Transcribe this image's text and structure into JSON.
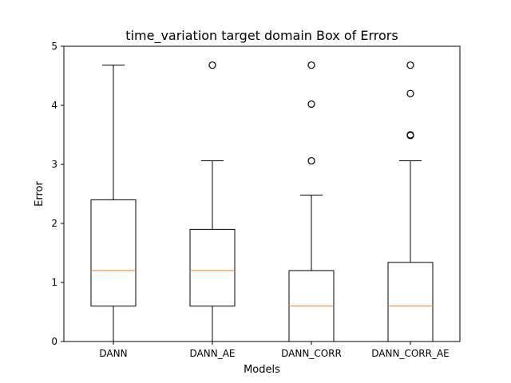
{
  "chart_data": {
    "type": "box",
    "title": "time_variation target domain Box of Errors",
    "xlabel": "Models",
    "ylabel": "Error",
    "ylim": [
      0,
      5
    ],
    "yticks": [
      0,
      1,
      2,
      3,
      4,
      5
    ],
    "grid": false,
    "categories": [
      "DANN",
      "DANN_AE",
      "DANN_CORR",
      "DANN_CORR_AE"
    ],
    "boxes": [
      {
        "whisker_low": 0,
        "q1": 0.6,
        "median": 1.2,
        "q3": 2.4,
        "whisker_high": 4.68,
        "outliers": []
      },
      {
        "whisker_low": 0,
        "q1": 0.6,
        "median": 1.2,
        "q3": 1.9,
        "whisker_high": 3.06,
        "outliers": [
          4.68
        ]
      },
      {
        "whisker_low": 0,
        "q1": 0.0,
        "median": 0.6,
        "q3": 1.2,
        "whisker_high": 2.48,
        "outliers": [
          3.06,
          4.02,
          4.68
        ]
      },
      {
        "whisker_low": 0,
        "q1": 0.0,
        "median": 0.6,
        "q3": 1.34,
        "whisker_high": 3.06,
        "outliers": [
          3.49,
          3.5,
          4.2,
          4.68
        ]
      }
    ],
    "colors": {
      "box": "#000000",
      "median": "#ff7f0e",
      "outlier": "#000000"
    }
  }
}
